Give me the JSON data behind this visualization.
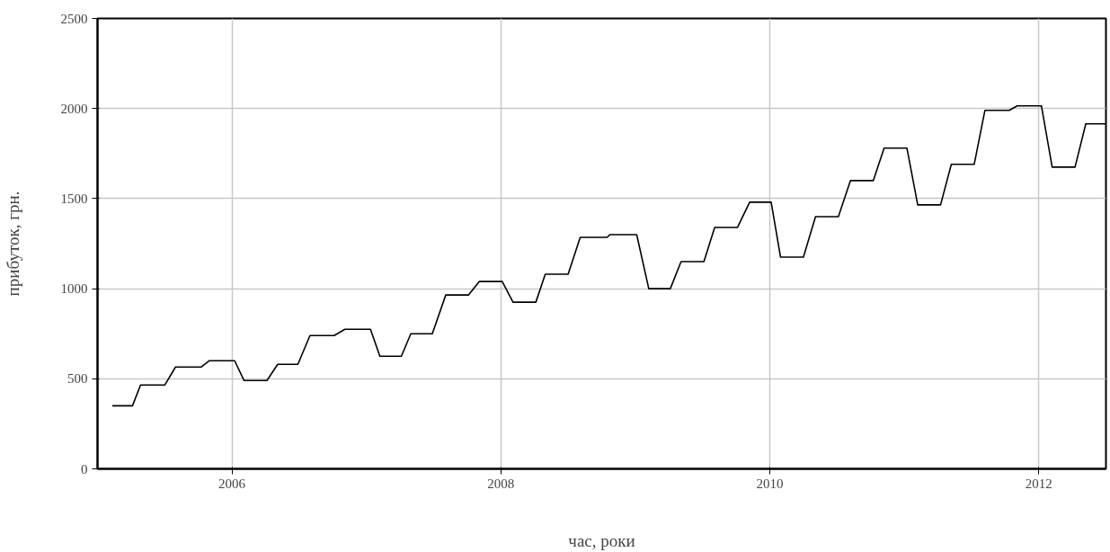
{
  "chart_data": {
    "type": "line",
    "xlabel": "час, роки",
    "ylabel": "прибуток, грн.",
    "x": [
      2005.11,
      2005.26,
      2005.32,
      2005.5,
      2005.58,
      2005.77,
      2005.83,
      2006.02,
      2006.09,
      2006.26,
      2006.34,
      2006.49,
      2006.58,
      2006.76,
      2006.84,
      2007.03,
      2007.1,
      2007.26,
      2007.33,
      2007.49,
      2007.59,
      2007.76,
      2007.84,
      2008.01,
      2008.09,
      2008.26,
      2008.33,
      2008.5,
      2008.59,
      2008.79,
      2008.81,
      2009.01,
      2009.1,
      2009.26,
      2009.34,
      2009.51,
      2009.59,
      2009.76,
      2009.85,
      2010.01,
      2010.08,
      2010.25,
      2010.34,
      2010.51,
      2010.6,
      2010.77,
      2010.85,
      2011.02,
      2011.1,
      2011.27,
      2011.35,
      2011.52,
      2011.6,
      2011.78,
      2011.84,
      2012.02,
      2012.1,
      2012.27,
      2012.35,
      2012.5
    ],
    "series": [
      {
        "color": "#000000",
        "values": [
          350,
          350,
          465,
          465,
          565,
          565,
          600,
          600,
          490,
          490,
          580,
          580,
          740,
          740,
          775,
          775,
          625,
          625,
          750,
          750,
          965,
          965,
          1040,
          1040,
          925,
          925,
          1080,
          1080,
          1285,
          1285,
          1300,
          1300,
          1000,
          1000,
          1150,
          1150,
          1340,
          1340,
          1480,
          1480,
          1175,
          1175,
          1400,
          1400,
          1600,
          1600,
          1780,
          1780,
          1465,
          1465,
          1690,
          1690,
          1990,
          1990,
          2015,
          2015,
          1675,
          1675,
          1915,
          1915
        ]
      }
    ],
    "xlim": [
      2005.0,
      2012.5
    ],
    "xticks": [
      2006,
      2008,
      2010,
      2012
    ],
    "ylim": [
      0,
      2500
    ],
    "yticks": [
      0,
      500,
      1000,
      1500,
      2000,
      2500
    ],
    "grid": true,
    "marker": "none",
    "line_style": "solid"
  }
}
